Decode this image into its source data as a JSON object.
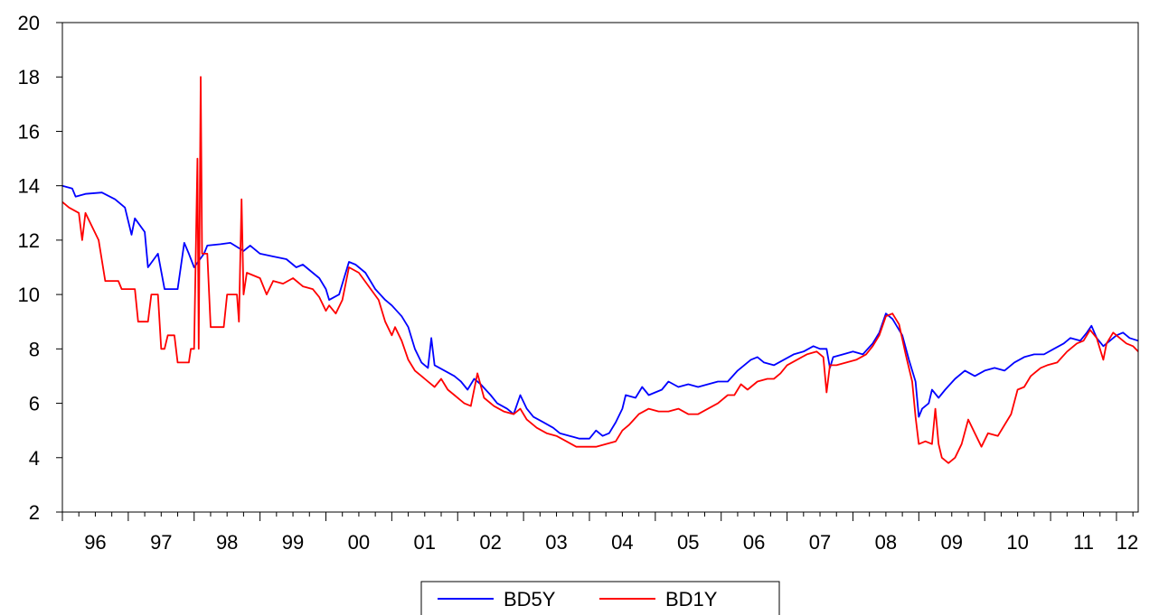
{
  "chart_data": {
    "type": "line",
    "title": "",
    "xlabel": "",
    "ylabel": "",
    "xlim": [
      1996.0,
      2012.33
    ],
    "ylim": [
      2,
      20
    ],
    "y_ticks": [
      2,
      4,
      6,
      8,
      10,
      12,
      14,
      16,
      18,
      20
    ],
    "y_tick_labels": [
      "2",
      "4",
      "6",
      "8",
      "10",
      "12",
      "14",
      "16",
      "18",
      "20"
    ],
    "x_ticks": [
      1996,
      1997,
      1998,
      1999,
      2000,
      2001,
      2002,
      2003,
      2004,
      2005,
      2006,
      2007,
      2008,
      2009,
      2010,
      2011,
      2012
    ],
    "x_tick_labels": [
      "96",
      "97",
      "98",
      "99",
      "00",
      "01",
      "02",
      "03",
      "04",
      "05",
      "06",
      "07",
      "08",
      "09",
      "10",
      "11",
      "12"
    ],
    "grid": false,
    "legend_position": "bottom-center",
    "series": [
      {
        "name": "BD5Y",
        "color": "#0000ff",
        "points": [
          [
            1996.0,
            14.0
          ],
          [
            1996.15,
            13.9
          ],
          [
            1996.2,
            13.6
          ],
          [
            1996.35,
            13.7
          ],
          [
            1996.6,
            13.75
          ],
          [
            1996.8,
            13.5
          ],
          [
            1996.95,
            13.2
          ],
          [
            1997.05,
            12.2
          ],
          [
            1997.1,
            12.8
          ],
          [
            1997.25,
            12.3
          ],
          [
            1997.3,
            11.0
          ],
          [
            1997.45,
            11.5
          ],
          [
            1997.55,
            10.2
          ],
          [
            1997.7,
            10.2
          ],
          [
            1997.75,
            10.2
          ],
          [
            1997.85,
            11.9
          ],
          [
            1997.92,
            11.5
          ],
          [
            1998.0,
            11.0
          ],
          [
            1998.15,
            11.5
          ],
          [
            1998.2,
            11.8
          ],
          [
            1998.4,
            11.85
          ],
          [
            1998.55,
            11.9
          ],
          [
            1998.75,
            11.6
          ],
          [
            1998.85,
            11.8
          ],
          [
            1999.0,
            11.5
          ],
          [
            1999.2,
            11.4
          ],
          [
            1999.4,
            11.3
          ],
          [
            1999.55,
            11.0
          ],
          [
            1999.65,
            11.1
          ],
          [
            1999.8,
            10.8
          ],
          [
            1999.9,
            10.6
          ],
          [
            2000.0,
            10.2
          ],
          [
            2000.05,
            9.8
          ],
          [
            2000.2,
            10.0
          ],
          [
            2000.35,
            11.2
          ],
          [
            2000.45,
            11.1
          ],
          [
            2000.6,
            10.8
          ],
          [
            2000.75,
            10.2
          ],
          [
            2000.9,
            9.8
          ],
          [
            2001.0,
            9.6
          ],
          [
            2001.15,
            9.2
          ],
          [
            2001.25,
            8.8
          ],
          [
            2001.35,
            8.0
          ],
          [
            2001.45,
            7.5
          ],
          [
            2001.55,
            7.3
          ],
          [
            2001.6,
            8.4
          ],
          [
            2001.65,
            7.4
          ],
          [
            2001.8,
            7.2
          ],
          [
            2001.95,
            7.0
          ],
          [
            2002.05,
            6.8
          ],
          [
            2002.15,
            6.5
          ],
          [
            2002.25,
            6.9
          ],
          [
            2002.35,
            6.7
          ],
          [
            2002.5,
            6.3
          ],
          [
            2002.6,
            6.0
          ],
          [
            2002.75,
            5.8
          ],
          [
            2002.85,
            5.6
          ],
          [
            2002.95,
            6.3
          ],
          [
            2003.05,
            5.8
          ],
          [
            2003.15,
            5.5
          ],
          [
            2003.3,
            5.3
          ],
          [
            2003.45,
            5.1
          ],
          [
            2003.55,
            4.9
          ],
          [
            2003.7,
            4.8
          ],
          [
            2003.85,
            4.7
          ],
          [
            2004.0,
            4.7
          ],
          [
            2004.1,
            5.0
          ],
          [
            2004.2,
            4.8
          ],
          [
            2004.3,
            4.9
          ],
          [
            2004.4,
            5.3
          ],
          [
            2004.5,
            5.8
          ],
          [
            2004.55,
            6.3
          ],
          [
            2004.7,
            6.2
          ],
          [
            2004.8,
            6.6
          ],
          [
            2004.9,
            6.3
          ],
          [
            2005.0,
            6.4
          ],
          [
            2005.1,
            6.5
          ],
          [
            2005.2,
            6.8
          ],
          [
            2005.35,
            6.6
          ],
          [
            2005.5,
            6.7
          ],
          [
            2005.65,
            6.6
          ],
          [
            2005.8,
            6.7
          ],
          [
            2005.95,
            6.8
          ],
          [
            2006.1,
            6.8
          ],
          [
            2006.25,
            7.2
          ],
          [
            2006.35,
            7.4
          ],
          [
            2006.45,
            7.6
          ],
          [
            2006.55,
            7.7
          ],
          [
            2006.65,
            7.5
          ],
          [
            2006.8,
            7.4
          ],
          [
            2006.95,
            7.6
          ],
          [
            2007.1,
            7.8
          ],
          [
            2007.25,
            7.9
          ],
          [
            2007.4,
            8.1
          ],
          [
            2007.5,
            8.0
          ],
          [
            2007.6,
            8.0
          ],
          [
            2007.65,
            7.3
          ],
          [
            2007.7,
            7.7
          ],
          [
            2007.85,
            7.8
          ],
          [
            2008.0,
            7.9
          ],
          [
            2008.15,
            7.8
          ],
          [
            2008.3,
            8.2
          ],
          [
            2008.4,
            8.6
          ],
          [
            2008.5,
            9.3
          ],
          [
            2008.6,
            9.1
          ],
          [
            2008.75,
            8.5
          ],
          [
            2008.85,
            7.6
          ],
          [
            2008.95,
            6.8
          ],
          [
            2009.0,
            5.5
          ],
          [
            2009.05,
            5.8
          ],
          [
            2009.15,
            6.0
          ],
          [
            2009.2,
            6.5
          ],
          [
            2009.3,
            6.2
          ],
          [
            2009.4,
            6.5
          ],
          [
            2009.55,
            6.9
          ],
          [
            2009.7,
            7.2
          ],
          [
            2009.85,
            7.0
          ],
          [
            2010.0,
            7.2
          ],
          [
            2010.15,
            7.3
          ],
          [
            2010.3,
            7.2
          ],
          [
            2010.45,
            7.5
          ],
          [
            2010.6,
            7.7
          ],
          [
            2010.75,
            7.8
          ],
          [
            2010.9,
            7.8
          ],
          [
            2011.05,
            8.0
          ],
          [
            2011.2,
            8.2
          ],
          [
            2011.3,
            8.4
          ],
          [
            2011.45,
            8.3
          ],
          [
            2011.55,
            8.6
          ],
          [
            2011.62,
            8.85
          ],
          [
            2011.7,
            8.4
          ],
          [
            2011.8,
            8.1
          ],
          [
            2011.9,
            8.3
          ],
          [
            2012.0,
            8.5
          ],
          [
            2012.1,
            8.6
          ],
          [
            2012.2,
            8.4
          ],
          [
            2012.33,
            8.3
          ]
        ]
      },
      {
        "name": "BD1Y",
        "color": "#ff0000",
        "points": [
          [
            1996.0,
            13.4
          ],
          [
            1996.1,
            13.2
          ],
          [
            1996.25,
            13.0
          ],
          [
            1996.3,
            12.0
          ],
          [
            1996.35,
            13.0
          ],
          [
            1996.55,
            12.0
          ],
          [
            1996.65,
            10.5
          ],
          [
            1996.85,
            10.5
          ],
          [
            1996.9,
            10.2
          ],
          [
            1997.1,
            10.2
          ],
          [
            1997.15,
            9.0
          ],
          [
            1997.3,
            9.0
          ],
          [
            1997.35,
            10.0
          ],
          [
            1997.45,
            10.0
          ],
          [
            1997.5,
            8.0
          ],
          [
            1997.55,
            8.0
          ],
          [
            1997.6,
            8.5
          ],
          [
            1997.7,
            8.5
          ],
          [
            1997.75,
            7.5
          ],
          [
            1997.92,
            7.5
          ],
          [
            1997.95,
            8.0
          ],
          [
            1998.0,
            8.0
          ],
          [
            1998.05,
            15.0
          ],
          [
            1998.07,
            8.0
          ],
          [
            1998.1,
            18.0
          ],
          [
            1998.12,
            11.5
          ],
          [
            1998.2,
            11.5
          ],
          [
            1998.25,
            8.8
          ],
          [
            1998.45,
            8.8
          ],
          [
            1998.5,
            10.0
          ],
          [
            1998.65,
            10.0
          ],
          [
            1998.68,
            9.0
          ],
          [
            1998.72,
            13.5
          ],
          [
            1998.75,
            10.0
          ],
          [
            1998.8,
            10.8
          ],
          [
            1998.9,
            10.7
          ],
          [
            1999.0,
            10.6
          ],
          [
            1999.1,
            10.0
          ],
          [
            1999.2,
            10.5
          ],
          [
            1999.35,
            10.4
          ],
          [
            1999.5,
            10.6
          ],
          [
            1999.65,
            10.3
          ],
          [
            1999.8,
            10.2
          ],
          [
            1999.9,
            9.9
          ],
          [
            2000.0,
            9.4
          ],
          [
            2000.05,
            9.6
          ],
          [
            2000.15,
            9.3
          ],
          [
            2000.25,
            9.8
          ],
          [
            2000.35,
            11.0
          ],
          [
            2000.5,
            10.8
          ],
          [
            2000.65,
            10.3
          ],
          [
            2000.8,
            9.8
          ],
          [
            2000.9,
            9.0
          ],
          [
            2001.0,
            8.5
          ],
          [
            2001.05,
            8.8
          ],
          [
            2001.15,
            8.3
          ],
          [
            2001.25,
            7.6
          ],
          [
            2001.35,
            7.2
          ],
          [
            2001.45,
            7.0
          ],
          [
            2001.55,
            6.8
          ],
          [
            2001.65,
            6.6
          ],
          [
            2001.75,
            6.9
          ],
          [
            2001.85,
            6.5
          ],
          [
            2001.95,
            6.3
          ],
          [
            2002.1,
            6.0
          ],
          [
            2002.2,
            5.9
          ],
          [
            2002.3,
            7.1
          ],
          [
            2002.4,
            6.2
          ],
          [
            2002.55,
            5.9
          ],
          [
            2002.7,
            5.7
          ],
          [
            2002.85,
            5.6
          ],
          [
            2002.95,
            5.8
          ],
          [
            2003.05,
            5.4
          ],
          [
            2003.2,
            5.1
          ],
          [
            2003.35,
            4.9
          ],
          [
            2003.5,
            4.8
          ],
          [
            2003.65,
            4.6
          ],
          [
            2003.8,
            4.4
          ],
          [
            2003.95,
            4.4
          ],
          [
            2004.1,
            4.4
          ],
          [
            2004.25,
            4.5
          ],
          [
            2004.4,
            4.6
          ],
          [
            2004.5,
            5.0
          ],
          [
            2004.6,
            5.2
          ],
          [
            2004.75,
            5.6
          ],
          [
            2004.9,
            5.8
          ],
          [
            2005.05,
            5.7
          ],
          [
            2005.2,
            5.7
          ],
          [
            2005.35,
            5.8
          ],
          [
            2005.5,
            5.6
          ],
          [
            2005.65,
            5.6
          ],
          [
            2005.8,
            5.8
          ],
          [
            2005.95,
            6.0
          ],
          [
            2006.1,
            6.3
          ],
          [
            2006.2,
            6.3
          ],
          [
            2006.3,
            6.7
          ],
          [
            2006.4,
            6.5
          ],
          [
            2006.55,
            6.8
          ],
          [
            2006.7,
            6.9
          ],
          [
            2006.8,
            6.9
          ],
          [
            2006.9,
            7.1
          ],
          [
            2007.0,
            7.4
          ],
          [
            2007.15,
            7.6
          ],
          [
            2007.3,
            7.8
          ],
          [
            2007.45,
            7.9
          ],
          [
            2007.55,
            7.7
          ],
          [
            2007.6,
            6.4
          ],
          [
            2007.65,
            7.4
          ],
          [
            2007.75,
            7.4
          ],
          [
            2007.9,
            7.5
          ],
          [
            2008.05,
            7.6
          ],
          [
            2008.2,
            7.8
          ],
          [
            2008.3,
            8.1
          ],
          [
            2008.4,
            8.5
          ],
          [
            2008.5,
            9.2
          ],
          [
            2008.6,
            9.3
          ],
          [
            2008.7,
            8.9
          ],
          [
            2008.8,
            7.8
          ],
          [
            2008.9,
            6.8
          ],
          [
            2008.95,
            5.5
          ],
          [
            2009.0,
            4.5
          ],
          [
            2009.1,
            4.6
          ],
          [
            2009.2,
            4.5
          ],
          [
            2009.25,
            5.8
          ],
          [
            2009.3,
            4.5
          ],
          [
            2009.35,
            4.0
          ],
          [
            2009.45,
            3.8
          ],
          [
            2009.55,
            4.0
          ],
          [
            2009.65,
            4.5
          ],
          [
            2009.75,
            5.4
          ],
          [
            2009.85,
            4.9
          ],
          [
            2009.95,
            4.4
          ],
          [
            2010.05,
            4.9
          ],
          [
            2010.2,
            4.8
          ],
          [
            2010.3,
            5.2
          ],
          [
            2010.4,
            5.6
          ],
          [
            2010.5,
            6.5
          ],
          [
            2010.6,
            6.6
          ],
          [
            2010.7,
            7.0
          ],
          [
            2010.85,
            7.3
          ],
          [
            2010.95,
            7.4
          ],
          [
            2011.1,
            7.5
          ],
          [
            2011.25,
            7.9
          ],
          [
            2011.4,
            8.2
          ],
          [
            2011.5,
            8.3
          ],
          [
            2011.6,
            8.7
          ],
          [
            2011.7,
            8.4
          ],
          [
            2011.75,
            8.0
          ],
          [
            2011.8,
            7.6
          ],
          [
            2011.85,
            8.2
          ],
          [
            2011.95,
            8.6
          ],
          [
            2012.05,
            8.4
          ],
          [
            2012.15,
            8.2
          ],
          [
            2012.25,
            8.1
          ],
          [
            2012.33,
            7.9
          ]
        ]
      }
    ]
  }
}
